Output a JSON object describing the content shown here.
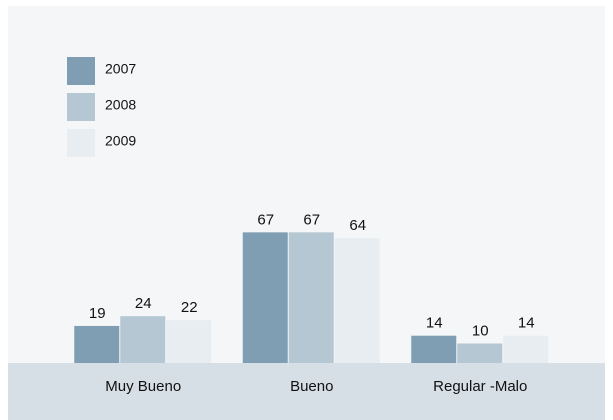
{
  "chart_data": {
    "type": "bar",
    "categories": [
      "Muy Bueno",
      "Bueno",
      "Regular -Malo"
    ],
    "series": [
      {
        "name": "2007",
        "color": "#7f9db3",
        "values": [
          19,
          67,
          14
        ]
      },
      {
        "name": "2008",
        "color": "#b4c7d2",
        "values": [
          24,
          67,
          10
        ]
      },
      {
        "name": "2009",
        "color": "#e8edf1",
        "values": [
          22,
          64,
          14
        ]
      }
    ],
    "ylim": [
      0,
      100
    ]
  }
}
